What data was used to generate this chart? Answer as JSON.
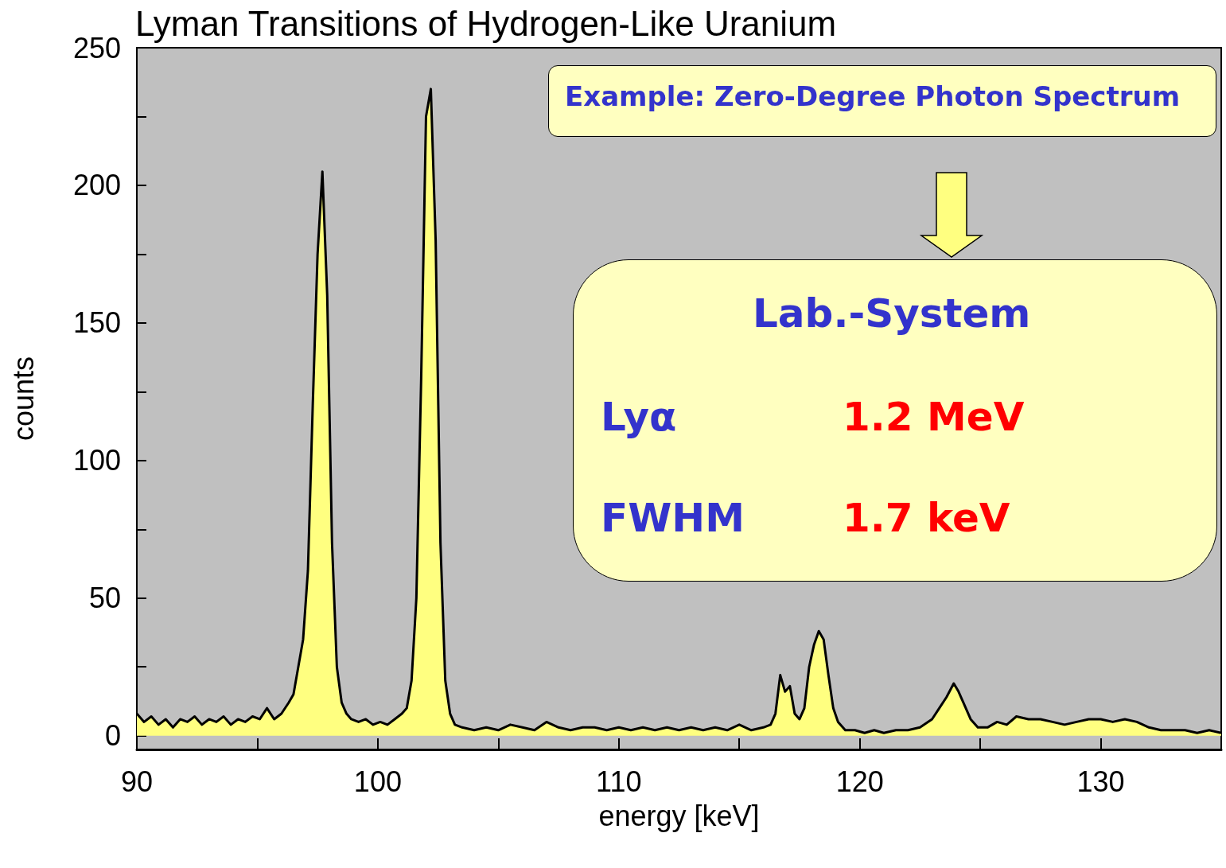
{
  "chart_data": {
    "type": "area",
    "title": "Lyman Transitions of Hydrogen-Like Uranium",
    "xlabel": "energy [keV]",
    "ylabel": "counts",
    "x": [
      90,
      90.3,
      90.6,
      90.9,
      91.2,
      91.5,
      91.8,
      92.1,
      92.4,
      92.7,
      93,
      93.3,
      93.6,
      93.9,
      94.2,
      94.5,
      94.8,
      95.1,
      95.4,
      95.7,
      96,
      96.3,
      96.5,
      96.7,
      96.9,
      97.1,
      97.3,
      97.5,
      97.7,
      97.9,
      98.1,
      98.3,
      98.5,
      98.7,
      98.9,
      99.2,
      99.5,
      99.8,
      100.1,
      100.4,
      100.7,
      101,
      101.2,
      101.4,
      101.6,
      101.8,
      102,
      102.2,
      102.4,
      102.6,
      102.8,
      103,
      103.2,
      103.5,
      104,
      104.5,
      105,
      105.5,
      106,
      106.5,
      107,
      107.5,
      108,
      108.5,
      109,
      109.5,
      110,
      110.5,
      111,
      111.5,
      112,
      112.5,
      113,
      113.5,
      114,
      114.5,
      115,
      115.5,
      116,
      116.3,
      116.5,
      116.7,
      116.9,
      117.1,
      117.3,
      117.5,
      117.7,
      117.9,
      118.1,
      118.3,
      118.5,
      118.7,
      118.9,
      119.1,
      119.4,
      119.8,
      120.2,
      120.6,
      121,
      121.5,
      122,
      122.5,
      123,
      123.3,
      123.6,
      123.9,
      124.1,
      124.3,
      124.6,
      124.9,
      125.3,
      125.7,
      126.1,
      126.5,
      127,
      127.5,
      128,
      128.5,
      129,
      129.5,
      130,
      130.5,
      131,
      131.5,
      132,
      132.5,
      133,
      133.5,
      134,
      134.5,
      135
    ],
    "series": [
      {
        "color": "#ffff80",
        "values": [
          8,
          5,
          7,
          4,
          6,
          3,
          6,
          5,
          7,
          4,
          6,
          5,
          7,
          4,
          6,
          5,
          7,
          6,
          10,
          6,
          8,
          12,
          15,
          25,
          35,
          60,
          120,
          175,
          205,
          160,
          70,
          25,
          12,
          8,
          6,
          5,
          6,
          4,
          5,
          4,
          6,
          8,
          10,
          20,
          50,
          130,
          225,
          235,
          180,
          70,
          20,
          8,
          4,
          3,
          2,
          3,
          2,
          4,
          3,
          2,
          5,
          3,
          2,
          3,
          3,
          2,
          3,
          2,
          3,
          2,
          3,
          2,
          3,
          2,
          3,
          2,
          4,
          2,
          3,
          4,
          8,
          22,
          16,
          18,
          8,
          6,
          10,
          25,
          33,
          38,
          35,
          22,
          10,
          5,
          2,
          2,
          1,
          2,
          1,
          2,
          2,
          3,
          6,
          10,
          14,
          19,
          16,
          12,
          6,
          3,
          3,
          5,
          4,
          7,
          6,
          6,
          5,
          4,
          5,
          6,
          6,
          5,
          6,
          5,
          3,
          2,
          2,
          2,
          1,
          2,
          1
        ]
      }
    ],
    "xlim": [
      90,
      135
    ],
    "xticks": [
      90,
      100,
      110,
      120,
      130
    ],
    "ylim": [
      -5,
      250
    ],
    "yticks": [
      0,
      50,
      100,
      150,
      200,
      250
    ],
    "grid": false,
    "marker": "none",
    "line_style": "solid",
    "annotations": [
      "Example: Zero-Degree Photon Spectrum",
      "Lab.-System",
      "Lyα",
      "1.2 MeV",
      "FWHM",
      "1.7 keV"
    ]
  }
}
